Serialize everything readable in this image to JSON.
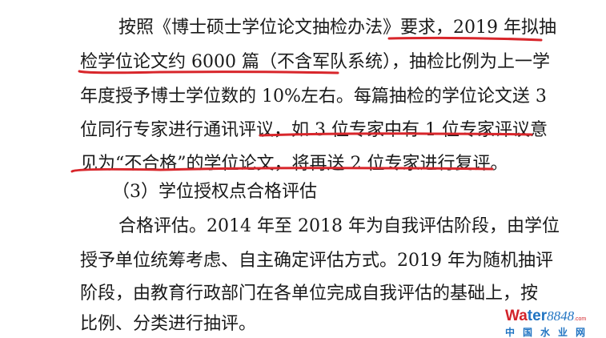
{
  "document": {
    "lines": [
      "按照《博士硕士学位论文抽检办法》要求，2019 年拟抽",
      "检学位论文约 6000 篇（不含军队系统），抽检比例为上一学",
      "年度授予博士学位数的 10%左右。每篇抽检的学位论文送 3",
      "位同行专家进行通讯评议，如 3 位专家中有 1 位专家评议意",
      "见为“不合格”的学位论文，将再送 2 位专家进行复评。",
      "（3）学位授权点合格评估",
      "合格评估。2014 年至 2018 年为自我评估阶段，由学位",
      "授予单位统筹考虑、自主确定评估方式。2019 年为随机抽评",
      "阶段，由教育行政部门在各单位完成自我评估的基础上，按",
      "比例、分类进行抽评。"
    ],
    "underline_color": "#d8262b"
  },
  "watermark": {
    "brand_w": "Wa",
    "brand_ter": "ter",
    "brand_num": "8848",
    "brand_com": ".com",
    "brand_cn": "中国水业网"
  }
}
